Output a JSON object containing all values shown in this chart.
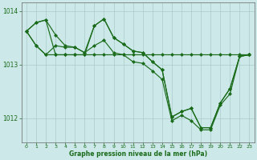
{
  "bg_color": "#cce8e8",
  "grid_color": "#aacccc",
  "line_color": "#1a6b1a",
  "xlabel": "Graphe pression niveau de la mer (hPa)",
  "xlim": [
    -0.5,
    23.5
  ],
  "ylim": [
    1011.55,
    1014.15
  ],
  "yticks": [
    1012,
    1013,
    1014
  ],
  "xticks": [
    0,
    1,
    2,
    3,
    4,
    5,
    6,
    7,
    8,
    9,
    10,
    11,
    12,
    13,
    14,
    15,
    16,
    17,
    18,
    19,
    20,
    21,
    22,
    23
  ],
  "series": [
    {
      "x": [
        0,
        1,
        2,
        3,
        4,
        5,
        6,
        7,
        8,
        9,
        10,
        11,
        12,
        13,
        14,
        15,
        16,
        17,
        18,
        19,
        20,
        21,
        22,
        23
      ],
      "y": [
        1013.62,
        1013.78,
        1013.83,
        1013.55,
        1013.35,
        1013.32,
        1013.22,
        1013.72,
        1013.85,
        1013.5,
        1013.38,
        1013.25,
        1013.22,
        1013.05,
        1012.9,
        1012.02,
        1012.12,
        1012.18,
        1011.82,
        1011.82,
        1012.28,
        1012.55,
        1013.15,
        1013.18
      ]
    },
    {
      "x": [
        0,
        1,
        2,
        3,
        4,
        5,
        6,
        7,
        8,
        9,
        10,
        11,
        12,
        13,
        14,
        15,
        16,
        17,
        18,
        19,
        20,
        21,
        22,
        23
      ],
      "y": [
        1013.62,
        1013.78,
        1013.83,
        1013.18,
        1013.18,
        1013.18,
        1013.18,
        1013.18,
        1013.18,
        1013.18,
        1013.18,
        1013.18,
        1013.18,
        1013.18,
        1013.18,
        1013.18,
        1013.18,
        1013.18,
        1013.18,
        1013.18,
        1013.18,
        1013.18,
        1013.18,
        1013.18
      ]
    },
    {
      "x": [
        0,
        1,
        2,
        3,
        4,
        5,
        6,
        7,
        8,
        9,
        10,
        11,
        12,
        13,
        14,
        15,
        16,
        17,
        18,
        19,
        20,
        21,
        22,
        23
      ],
      "y": [
        1013.62,
        1013.35,
        1013.18,
        1013.18,
        1013.18,
        1013.18,
        1013.18,
        1013.72,
        1013.85,
        1013.5,
        1013.38,
        1013.25,
        1013.22,
        1013.05,
        1012.9,
        1012.02,
        1012.12,
        1012.18,
        1011.82,
        1011.82,
        1012.28,
        1012.55,
        1013.15,
        1013.18
      ]
    },
    {
      "x": [
        0,
        1,
        2,
        3,
        4,
        5,
        6,
        7,
        8,
        9,
        10,
        11,
        12,
        13,
        14,
        15,
        16,
        17,
        18,
        19,
        20,
        21,
        22,
        23
      ],
      "y": [
        1013.62,
        1013.35,
        1013.18,
        1013.35,
        1013.32,
        1013.32,
        1013.22,
        1013.35,
        1013.45,
        1013.22,
        1013.18,
        1013.05,
        1013.02,
        1012.88,
        1012.72,
        1011.95,
        1012.05,
        1011.95,
        1011.78,
        1011.78,
        1012.24,
        1012.45,
        1013.15,
        1013.18
      ]
    }
  ]
}
